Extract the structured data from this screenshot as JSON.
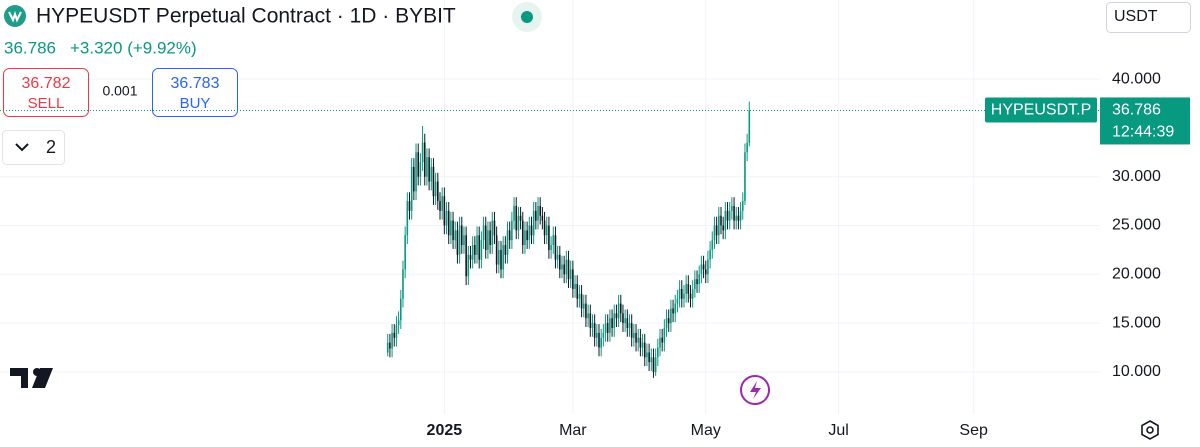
{
  "header": {
    "symbol_title": "HYPEUSDT Perpetual Contract · 1D · BYBIT",
    "last": "36.786",
    "change": "+3.320 (+9.92%)",
    "currency": "USDT"
  },
  "trade": {
    "sell_price": "36.782",
    "sell_label": "SELL",
    "spread": "0.001",
    "buy_price": "36.783",
    "buy_label": "BUY",
    "toggle_count": "2"
  },
  "chart_data": {
    "type": "candlestick",
    "up_color": "#089981",
    "down_color": "#131722",
    "grid": true,
    "xlim": [
      -178,
      327
    ],
    "ylim": [
      6.1,
      48.1
    ],
    "xticks": [
      {
        "value": 26,
        "label": "2025"
      },
      {
        "value": 85,
        "label": "Mar"
      },
      {
        "value": 146,
        "label": "May"
      },
      {
        "value": 207,
        "label": "Jul"
      },
      {
        "value": 269,
        "label": "Sep"
      }
    ],
    "yticks": [
      {
        "value": 10,
        "label": "10.000"
      },
      {
        "value": 15,
        "label": "15.000"
      },
      {
        "value": 20,
        "label": "20.000"
      },
      {
        "value": 25,
        "label": "25.000"
      },
      {
        "value": 30,
        "label": "30.000"
      },
      {
        "value": 40,
        "label": "40.000"
      }
    ],
    "price_line": {
      "label": "HYPEUSDT.P",
      "value": "36.786",
      "countdown": "12:44:39"
    },
    "candles": [
      [
        12.0,
        13.9,
        11.6,
        13.0
      ],
      [
        13,
        13.9,
        11.5,
        12.4
      ],
      [
        12.4,
        14.9,
        11.5,
        14
      ],
      [
        14,
        14.9,
        12.6,
        13.5
      ],
      [
        13.5,
        15.7,
        12.6,
        14.8
      ],
      [
        14.8,
        16.2,
        13.9,
        15.3
      ],
      [
        15.3,
        18.4,
        14.4,
        17.5
      ],
      [
        17.5,
        21.4,
        16.6,
        20.5
      ],
      [
        20.5,
        24.9,
        19.6,
        24
      ],
      [
        24,
        28.4,
        23.1,
        27.5
      ],
      [
        27.5,
        28.4,
        25.6,
        26.5
      ],
      [
        26.5,
        31.9,
        25.6,
        31
      ],
      [
        31,
        31.9,
        27.6,
        28.5
      ],
      [
        28.5,
        33.4,
        27.6,
        32.5
      ],
      [
        32.5,
        33.4,
        29.1,
        30
      ],
      [
        30,
        32.4,
        29.1,
        31.5
      ],
      [
        31.5,
        35.2,
        30.6,
        33.5
      ],
      [
        33.5,
        34.4,
        29.1,
        30
      ],
      [
        30,
        32.9,
        29.1,
        32
      ],
      [
        32,
        32.9,
        28.6,
        29.5
      ],
      [
        29.5,
        31.9,
        28.6,
        31
      ],
      [
        31,
        31.9,
        27.1,
        28
      ],
      [
        28,
        30.4,
        27.1,
        29.5
      ],
      [
        29.5,
        30.4,
        26.6,
        27.5
      ],
      [
        27.5,
        28.4,
        25.6,
        26.5
      ],
      [
        26.5,
        28.9,
        25.6,
        28
      ],
      [
        28,
        28.9,
        24.1,
        25
      ],
      [
        25,
        27.4,
        24.1,
        26.5
      ],
      [
        26.5,
        27.4,
        23.1,
        24
      ],
      [
        24,
        26.4,
        23.1,
        25.5
      ],
      [
        25.5,
        26.4,
        22.6,
        23.5
      ],
      [
        23.5,
        25.4,
        22.6,
        24.5
      ],
      [
        24.5,
        25.4,
        21.1,
        22
      ],
      [
        22,
        25.9,
        21.1,
        25
      ],
      [
        25,
        25.9,
        22.1,
        23
      ],
      [
        23,
        24.9,
        22.1,
        24
      ],
      [
        24,
        24.9,
        18.9,
        19.8
      ],
      [
        19.8,
        22.9,
        18.9,
        22
      ],
      [
        22,
        22.9,
        20.6,
        21.5
      ],
      [
        21.5,
        23.9,
        20.6,
        23
      ],
      [
        23,
        23.9,
        21.1,
        22
      ],
      [
        22,
        24.9,
        21.1,
        24
      ],
      [
        24,
        24.9,
        20.6,
        21.5
      ],
      [
        21.5,
        24.4,
        20.6,
        23.5
      ],
      [
        23.5,
        25.9,
        22.6,
        25
      ],
      [
        25,
        25.9,
        21.6,
        22.5
      ],
      [
        22.5,
        25.4,
        21.6,
        24.5
      ],
      [
        24.5,
        25.4,
        22.1,
        23
      ],
      [
        23,
        26.4,
        22.1,
        25.5
      ],
      [
        25.5,
        26.4,
        23.1,
        24
      ],
      [
        24,
        24.9,
        20.1,
        21
      ],
      [
        21,
        23.4,
        20.1,
        22.5
      ],
      [
        22.5,
        23.4,
        19.6,
        20.5
      ],
      [
        20.5,
        23.9,
        19.6,
        23
      ],
      [
        23,
        23.9,
        21.1,
        22
      ],
      [
        22,
        25.4,
        21.1,
        24.5
      ],
      [
        24.5,
        25.4,
        22.6,
        23.5
      ],
      [
        23.5,
        26.4,
        22.6,
        25.5
      ],
      [
        25.5,
        27.9,
        24.6,
        27
      ],
      [
        27,
        27.9,
        23.6,
        24.5
      ],
      [
        24.5,
        26.9,
        23.6,
        26
      ],
      [
        26,
        26.9,
        24.6,
        25.5
      ],
      [
        25.5,
        26.4,
        22.1,
        23
      ],
      [
        23,
        25.4,
        22.1,
        24.5
      ],
      [
        24.5,
        25.4,
        22.6,
        23.5
      ],
      [
        23.5,
        25.9,
        22.6,
        25
      ],
      [
        25,
        25.9,
        23.1,
        24
      ],
      [
        24,
        27.4,
        23.1,
        26.5
      ],
      [
        26.5,
        27.4,
        24.6,
        25.5
      ],
      [
        25.5,
        27.9,
        24.6,
        27
      ],
      [
        27,
        27.9,
        25.1,
        26
      ],
      [
        26,
        26.9,
        24.6,
        25.5
      ],
      [
        25.5,
        26.4,
        23.1,
        24
      ],
      [
        24,
        25.9,
        23.1,
        25
      ],
      [
        25,
        25.9,
        21.6,
        22.5
      ],
      [
        22.5,
        23.9,
        21.6,
        23
      ],
      [
        23,
        24.9,
        22.1,
        24
      ],
      [
        24,
        24.9,
        20.6,
        21.5
      ],
      [
        21.5,
        22.9,
        20.6,
        22
      ],
      [
        22,
        22.9,
        19.6,
        20.5
      ],
      [
        20.5,
        21.9,
        19.6,
        21
      ],
      [
        21,
        21.9,
        19.1,
        20
      ],
      [
        20,
        22.4,
        19.1,
        21.5
      ],
      [
        21.5,
        22.4,
        18.6,
        19.5
      ],
      [
        19.5,
        21.4,
        18.6,
        20.5
      ],
      [
        20.5,
        21.4,
        17.6,
        18.5
      ],
      [
        18.5,
        19.9,
        17.6,
        19
      ],
      [
        19,
        19.9,
        16.6,
        17.5
      ],
      [
        17.5,
        18.9,
        16.6,
        18
      ],
      [
        18,
        18.9,
        15.6,
        16.5
      ],
      [
        16.5,
        17.9,
        15.6,
        17
      ],
      [
        17,
        17.9,
        14.6,
        15.5
      ],
      [
        15.5,
        16.9,
        14.6,
        16
      ],
      [
        16,
        16.9,
        13.6,
        14.5
      ],
      [
        14.5,
        15.9,
        13.6,
        15
      ],
      [
        15,
        15.9,
        12.6,
        13.5
      ],
      [
        13.5,
        14.9,
        12.6,
        14
      ],
      [
        14,
        14.9,
        11.6,
        12.5
      ],
      [
        12.5,
        14.4,
        11.6,
        13.5
      ],
      [
        13.5,
        14.9,
        12.6,
        14
      ],
      [
        14,
        15.9,
        13.1,
        15
      ],
      [
        15,
        15.9,
        13.1,
        14
      ],
      [
        14,
        16.4,
        13.1,
        15.5
      ],
      [
        15.5,
        16.4,
        13.6,
        14.5
      ],
      [
        14.5,
        16.9,
        13.6,
        16
      ],
      [
        16,
        16.9,
        14.6,
        15.5
      ],
      [
        15.5,
        17.9,
        14.6,
        17
      ],
      [
        17,
        17.9,
        15.1,
        16
      ],
      [
        16,
        16.9,
        14.1,
        15
      ],
      [
        15,
        16.4,
        14.1,
        15.5
      ],
      [
        15.5,
        16.4,
        13.6,
        14.5
      ],
      [
        14.5,
        15.9,
        13.6,
        15
      ],
      [
        15,
        15.9,
        12.6,
        13.5
      ],
      [
        13.5,
        14.9,
        12.6,
        14
      ],
      [
        14,
        14.9,
        12.1,
        13
      ],
      [
        13,
        14.4,
        12.1,
        13.5
      ],
      [
        13.5,
        14.4,
        11.6,
        12.5
      ],
      [
        12.5,
        13.9,
        11.6,
        13
      ],
      [
        13,
        13.9,
        10.6,
        11.5
      ],
      [
        11.5,
        12.9,
        10.6,
        12
      ],
      [
        12,
        12.9,
        10.1,
        11
      ],
      [
        11,
        12.4,
        10.1,
        11.5
      ],
      [
        11.5,
        12.4,
        9.4,
        10
      ],
      [
        10,
        12.4,
        9.6,
        11.5
      ],
      [
        11.5,
        13.4,
        10.6,
        12.5
      ],
      [
        12.5,
        14.4,
        11.6,
        13.5
      ],
      [
        13.5,
        14.4,
        12.1,
        13
      ],
      [
        13,
        15.4,
        12.1,
        14.5
      ],
      [
        14.5,
        16.4,
        13.6,
        15.5
      ],
      [
        15.5,
        16.4,
        14.1,
        15
      ],
      [
        15,
        17.4,
        14.1,
        16.5
      ],
      [
        16.5,
        17.4,
        15.1,
        16
      ],
      [
        16,
        17.9,
        15.1,
        17
      ],
      [
        17,
        18.4,
        16.1,
        17.5
      ],
      [
        17.5,
        19.4,
        16.6,
        18.5
      ],
      [
        18.5,
        19.4,
        16.6,
        17.5
      ],
      [
        17.5,
        18.9,
        16.6,
        18
      ],
      [
        18,
        19.9,
        17.1,
        19
      ],
      [
        19,
        19.9,
        17.1,
        18
      ],
      [
        18,
        18.9,
        16.6,
        17.5
      ],
      [
        17.5,
        19.4,
        16.6,
        18.5
      ],
      [
        18.5,
        20.4,
        17.6,
        19.5
      ],
      [
        19.5,
        20.4,
        18.1,
        19
      ],
      [
        19,
        20.9,
        18.1,
        20
      ],
      [
        20,
        21.9,
        19.1,
        21
      ],
      [
        21,
        21.9,
        19.6,
        20.5
      ],
      [
        20.5,
        21.4,
        19.1,
        20
      ],
      [
        20,
        22.4,
        19.1,
        21.5
      ],
      [
        21.5,
        23.4,
        20.6,
        22.5
      ],
      [
        22.5,
        24.4,
        21.6,
        23.5
      ],
      [
        23.5,
        25.9,
        22.6,
        25
      ],
      [
        25,
        25.9,
        23.1,
        24
      ],
      [
        24,
        26.9,
        23.1,
        26
      ],
      [
        26,
        26.9,
        24.1,
        25
      ],
      [
        25,
        25.9,
        23.6,
        24.5
      ],
      [
        24.5,
        27.4,
        23.6,
        26.5
      ],
      [
        26.5,
        27.4,
        24.6,
        25.5
      ],
      [
        25.5,
        27.4,
        24.6,
        26.5
      ],
      [
        26.5,
        27.9,
        25.6,
        27
      ],
      [
        27,
        27.9,
        24.6,
        25.5
      ],
      [
        25.5,
        26.9,
        24.6,
        26
      ],
      [
        26,
        26.9,
        24.6,
        25.5
      ],
      [
        25.5,
        27.4,
        24.6,
        26.5
      ],
      [
        26.5,
        28.4,
        25.6,
        27.5
      ],
      [
        27.5,
        33.4,
        27.1,
        32.5
      ],
      [
        32.5,
        34.4,
        31.6,
        33.466
      ],
      [
        33.466,
        37.7,
        33.1,
        36.786
      ]
    ]
  }
}
